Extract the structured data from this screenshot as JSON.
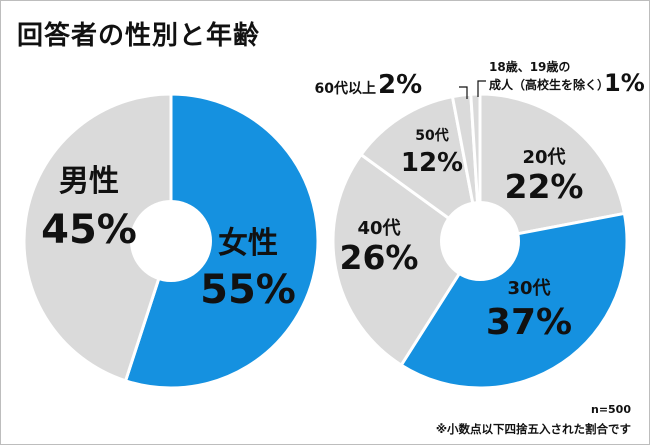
{
  "title": "回答者の性別と年齢",
  "colors": {
    "highlight": "#1591e0",
    "base": "#dadada",
    "separator": "#ffffff",
    "text_dark": "#111111",
    "text_light": "#ffffff"
  },
  "chart_data": [
    {
      "type": "pie",
      "title": "",
      "slices": [
        {
          "label": "女性",
          "value": 55,
          "value_label": "55%",
          "highlight": true
        },
        {
          "label": "男性",
          "value": 45,
          "value_label": "45%",
          "highlight": false
        }
      ]
    },
    {
      "type": "pie",
      "title": "",
      "slices": [
        {
          "label": "20代",
          "value": 22,
          "value_label": "22%",
          "highlight": false
        },
        {
          "label": "30代",
          "value": 37,
          "value_label": "37%",
          "highlight": true
        },
        {
          "label": "40代",
          "value": 26,
          "value_label": "26%",
          "highlight": false
        },
        {
          "label": "50代",
          "value": 12,
          "value_label": "12%",
          "highlight": false
        },
        {
          "label": "60代以上",
          "value": 2,
          "value_label": "2%",
          "highlight": false
        },
        {
          "label": "18歳、19歳の成人（高校生を除く）",
          "label_line1": "18歳、19歳の",
          "label_line2": "成人（高校生を除く）",
          "value": 1,
          "value_label": "1%",
          "highlight": false
        }
      ]
    }
  ],
  "notes": {
    "sample_size": "n=500",
    "rounding": "※小数点以下四捨五入された割合です"
  }
}
